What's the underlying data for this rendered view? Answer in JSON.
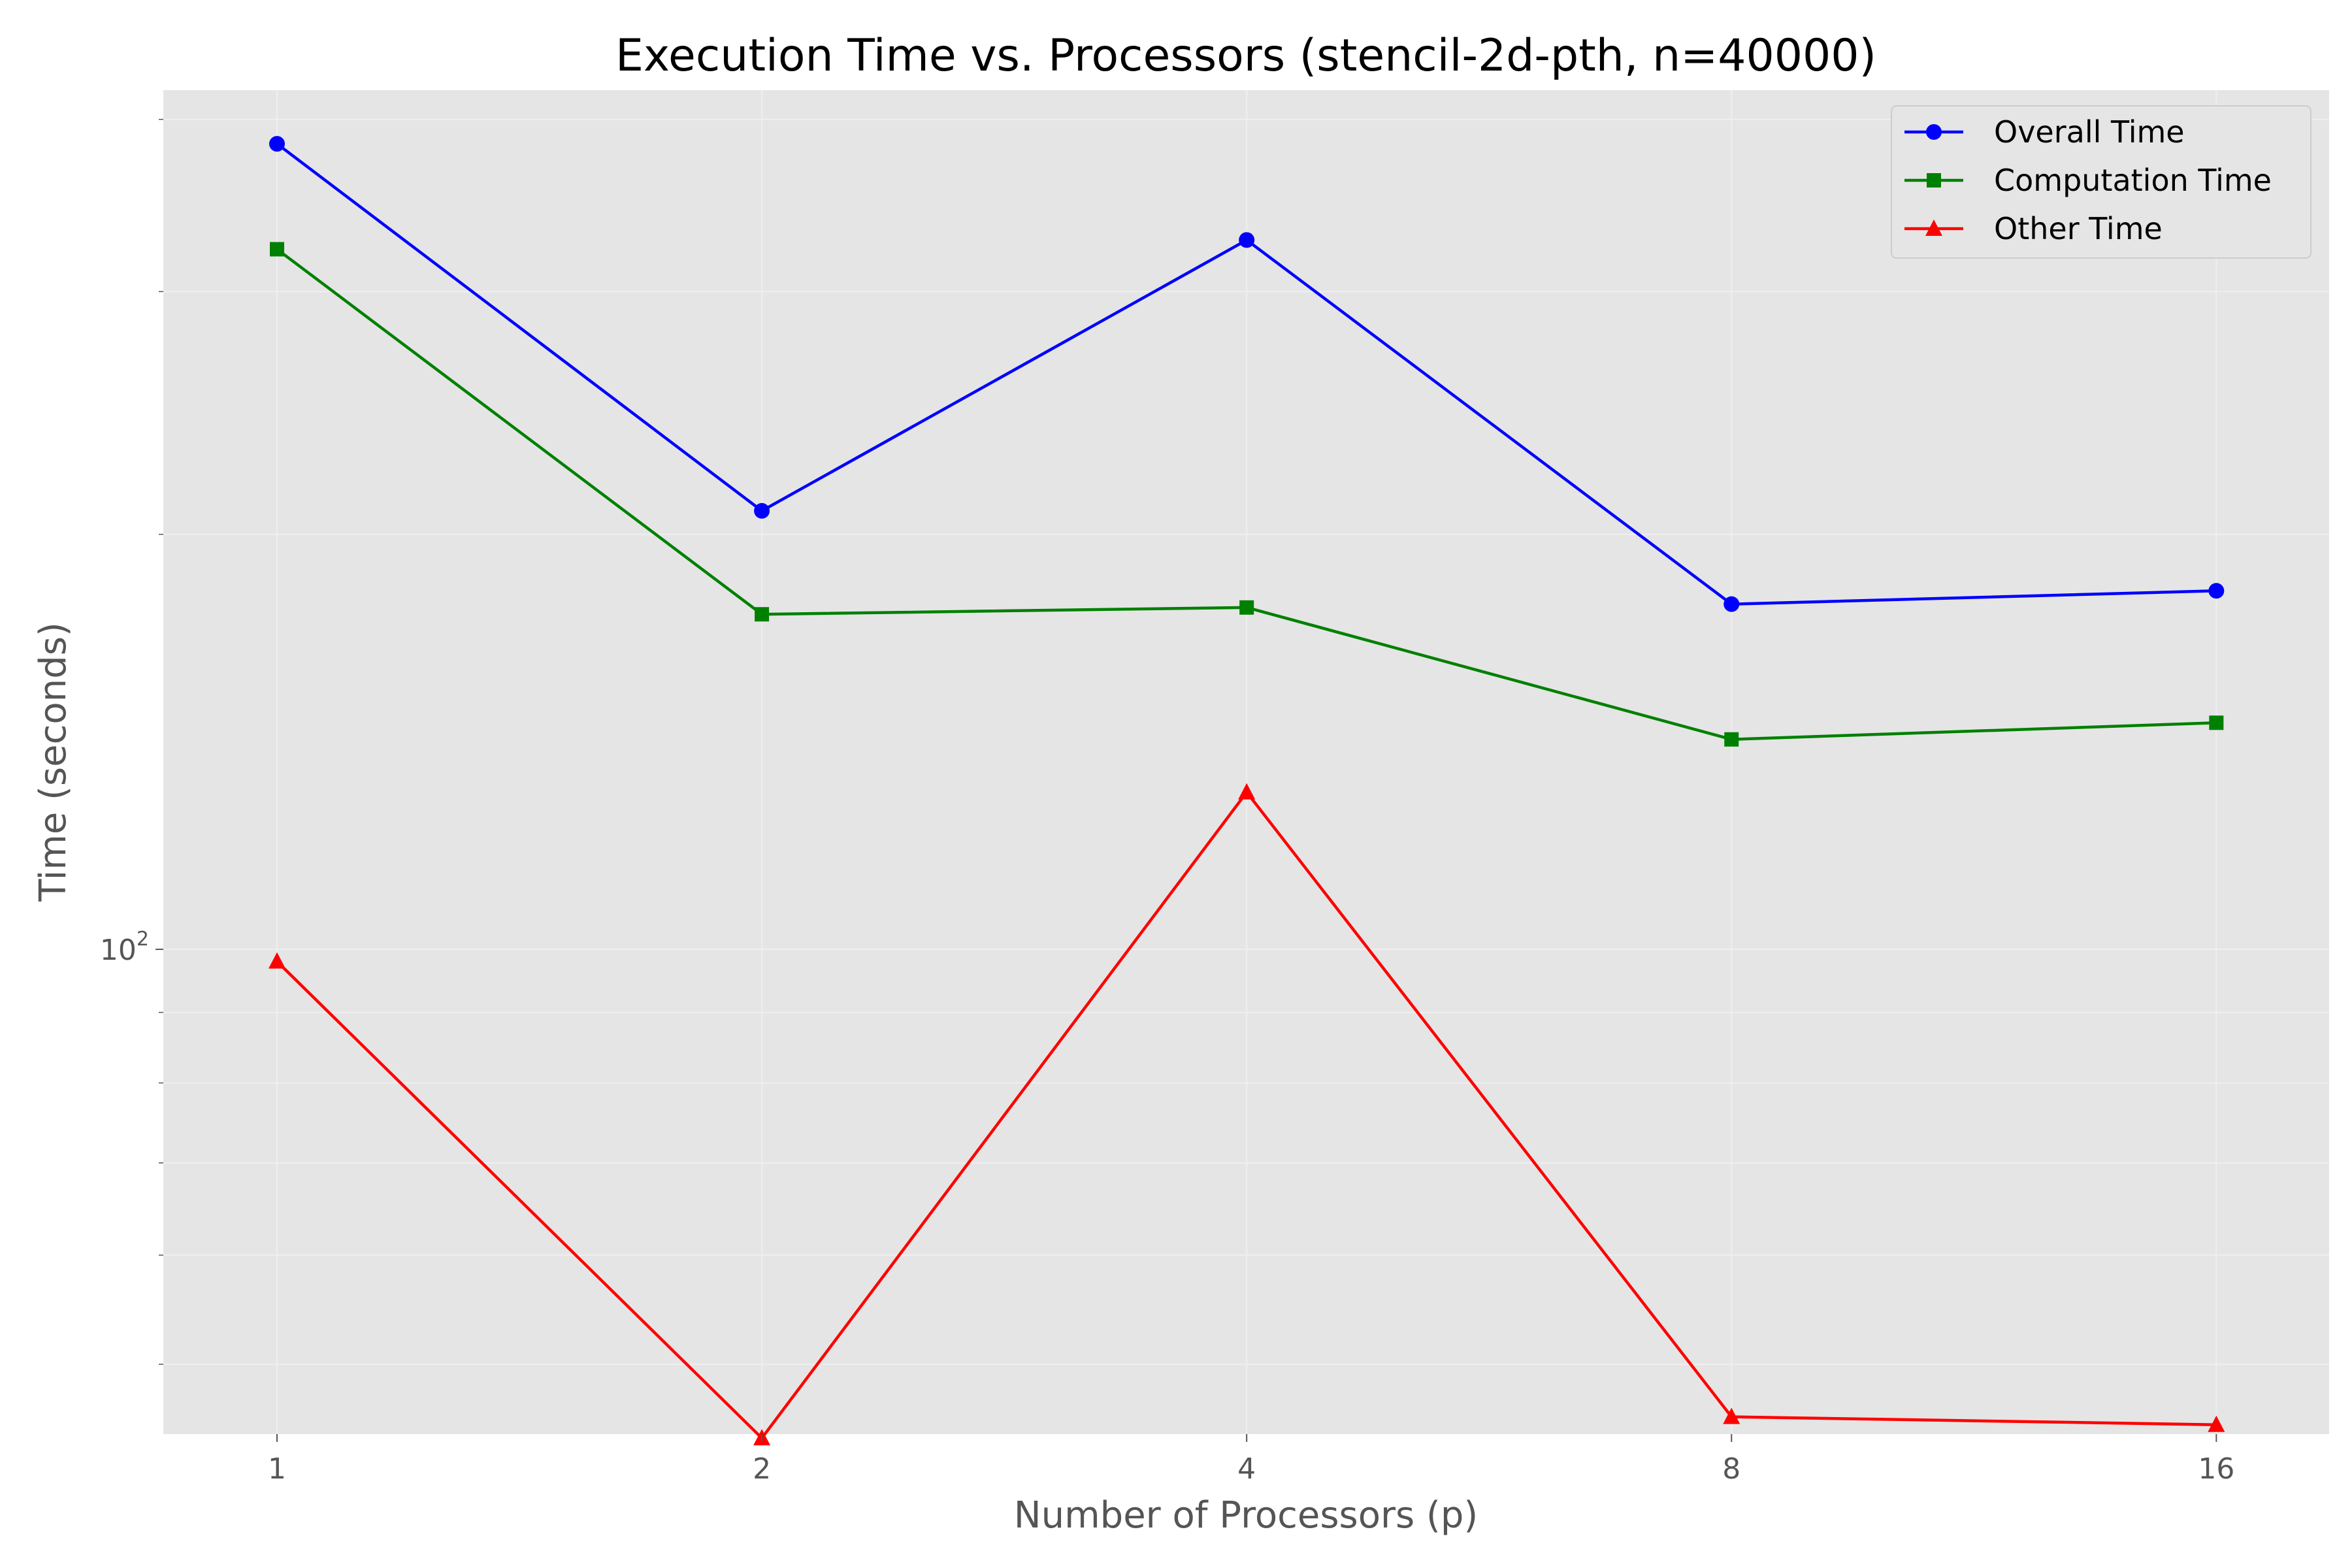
{
  "chart_data": {
    "type": "line",
    "title": "Execution Time vs. Processors (stencil-2d-pth, n=40000)",
    "xlabel": "Number of Processors (p)",
    "ylabel": "Time (seconds)",
    "x_scale": "log2",
    "y_scale": "log",
    "x": [
      1,
      2,
      4,
      8,
      16
    ],
    "x_tick_labels": [
      "1",
      "2",
      "4",
      "8",
      "16"
    ],
    "y_tick": {
      "value": 100,
      "base": "10",
      "exp": "2"
    },
    "xlim": [
      0.85,
      18.8
    ],
    "ylim": [
      44.5,
      420
    ],
    "grid": true,
    "legend_position": "top-right",
    "series": [
      {
        "name": "Overall Time",
        "color": "#0000ff",
        "marker": "circle",
        "values": [
          384,
          208,
          327,
          178,
          182
        ]
      },
      {
        "name": "Computation Time",
        "color": "#008000",
        "marker": "square",
        "values": [
          322,
          175,
          177,
          142,
          146
        ]
      },
      {
        "name": "Other Time",
        "color": "#ff0000",
        "marker": "triangle",
        "values": [
          98,
          44.2,
          130,
          45.8,
          45.2
        ]
      }
    ]
  }
}
